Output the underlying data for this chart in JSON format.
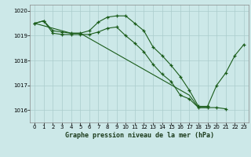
{
  "title": "Graphe pression niveau de la mer (hPa)",
  "background_color": "#cce8e8",
  "grid_color": "#aacccc",
  "line_color": "#1a5c1a",
  "x_min": 0,
  "x_max": 23,
  "y_min": 1015.5,
  "y_max": 1020.25,
  "y_ticks": [
    1016,
    1017,
    1018,
    1019,
    1020
  ],
  "x_ticks": [
    0,
    1,
    2,
    3,
    4,
    5,
    6,
    7,
    8,
    9,
    10,
    11,
    12,
    13,
    14,
    15,
    16,
    17,
    18,
    19,
    20,
    21,
    22,
    23
  ],
  "line1_x": [
    0,
    1,
    2,
    3,
    4,
    5,
    6,
    7,
    8,
    9,
    10,
    11,
    12,
    13,
    14,
    15,
    16,
    17,
    18,
    19,
    20,
    21,
    22,
    23
  ],
  "line1_y": [
    1019.5,
    1019.6,
    1019.2,
    1019.15,
    1019.1,
    1019.1,
    1019.2,
    1019.55,
    1019.75,
    1019.8,
    1019.8,
    1019.5,
    1019.2,
    1018.55,
    1018.2,
    1017.8,
    1017.35,
    1016.8,
    1016.15,
    1016.15,
    1017.0,
    1017.5,
    1018.2,
    1018.65
  ],
  "line2_x": [
    0,
    1,
    2,
    3,
    4,
    5,
    6,
    7,
    8,
    9,
    10,
    11,
    12,
    13,
    14,
    15,
    16,
    17,
    18,
    19,
    20,
    21
  ],
  "line2_y": [
    1019.5,
    1019.6,
    1019.1,
    1019.05,
    1019.05,
    1019.05,
    1019.05,
    1019.15,
    1019.3,
    1019.35,
    1019.0,
    1018.7,
    1018.35,
    1017.85,
    1017.45,
    1017.15,
    1016.6,
    1016.45,
    1016.1,
    1016.1,
    1016.1,
    1016.05
  ],
  "line3_x": [
    0,
    4,
    5,
    17,
    18,
    19
  ],
  "line3_y": [
    1019.5,
    1019.1,
    1019.1,
    1016.6,
    1016.1,
    1016.1
  ]
}
